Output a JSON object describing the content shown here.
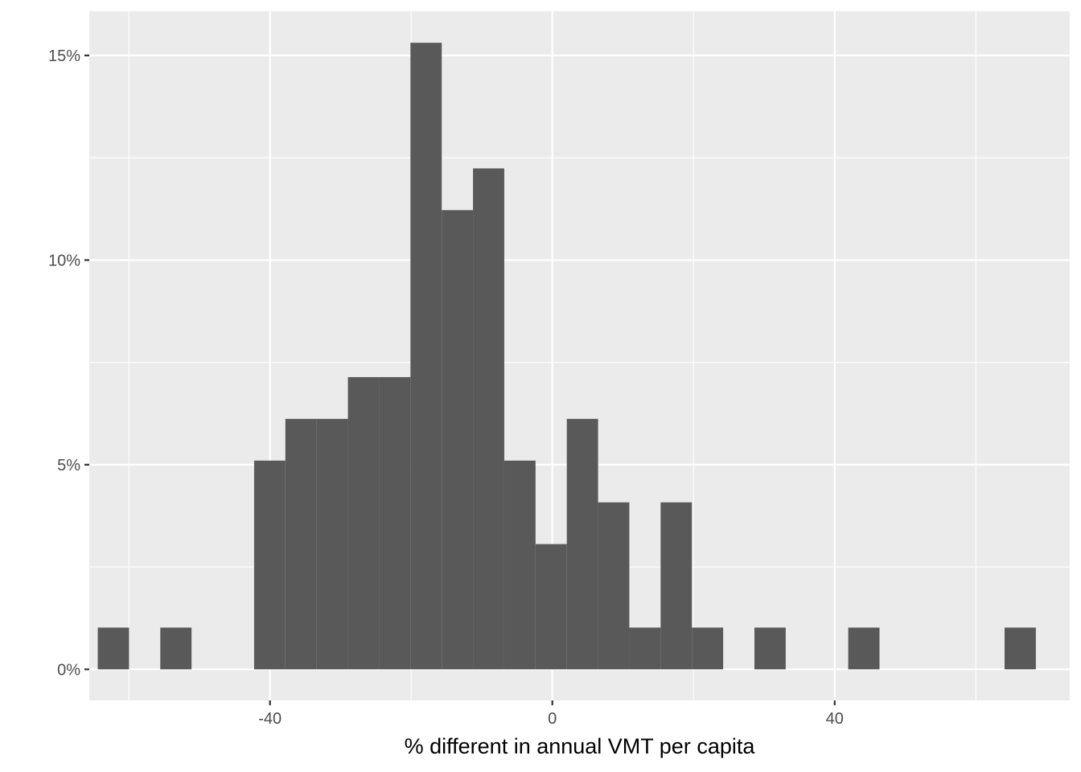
{
  "chart_data": {
    "type": "bar",
    "subtype": "histogram",
    "title": "",
    "xlabel": "% different in annual VMT per capita",
    "ylabel": "",
    "xlim": [
      -65.6,
      73.3
    ],
    "ylim": [
      -0.76,
      16.08
    ],
    "x_ticks": [
      -40,
      0,
      40
    ],
    "x_tick_labels": [
      "-40",
      "0",
      "40"
    ],
    "x_minor_ticks": [
      -60,
      -20,
      20,
      60
    ],
    "y_ticks": [
      0,
      5,
      10,
      15
    ],
    "y_tick_labels": [
      "0%",
      "5%",
      "10%",
      "15%"
    ],
    "y_minor_ticks": [
      2.5,
      7.5,
      12.5
    ],
    "bin_width": 4.43,
    "bins": [
      {
        "x0": -64.4,
        "x1": -59.97,
        "value": 1.02
      },
      {
        "x0": -55.54,
        "x1": -51.11,
        "value": 1.02
      },
      {
        "x0": -42.25,
        "x1": -37.82,
        "value": 5.1
      },
      {
        "x0": -37.82,
        "x1": -33.39,
        "value": 6.12
      },
      {
        "x0": -33.39,
        "x1": -28.96,
        "value": 6.12
      },
      {
        "x0": -28.96,
        "x1": -24.53,
        "value": 7.14
      },
      {
        "x0": -24.53,
        "x1": -20.1,
        "value": 7.14
      },
      {
        "x0": -20.1,
        "x1": -15.67,
        "value": 15.31
      },
      {
        "x0": -15.67,
        "x1": -11.24,
        "value": 11.22
      },
      {
        "x0": -11.24,
        "x1": -6.81,
        "value": 12.24
      },
      {
        "x0": -6.81,
        "x1": -2.38,
        "value": 5.1
      },
      {
        "x0": -2.38,
        "x1": 2.05,
        "value": 3.06
      },
      {
        "x0": 2.05,
        "x1": 6.48,
        "value": 6.12
      },
      {
        "x0": 6.48,
        "x1": 10.91,
        "value": 4.08
      },
      {
        "x0": 10.91,
        "x1": 15.34,
        "value": 1.02
      },
      {
        "x0": 15.34,
        "x1": 19.77,
        "value": 4.08
      },
      {
        "x0": 19.77,
        "x1": 24.2,
        "value": 1.02
      },
      {
        "x0": 28.63,
        "x1": 33.06,
        "value": 1.02
      },
      {
        "x0": 41.92,
        "x1": 46.35,
        "value": 1.02
      },
      {
        "x0": 64.07,
        "x1": 68.5,
        "value": 1.02
      }
    ],
    "grid": true,
    "legend": "none"
  },
  "colors": {
    "panel_background": "#ebebeb",
    "grid_major": "#ffffff",
    "bar_fill": "#595959",
    "tick_text": "#4d4d4d",
    "axis_title_text": "#000000",
    "tick_mark": "#333333"
  }
}
